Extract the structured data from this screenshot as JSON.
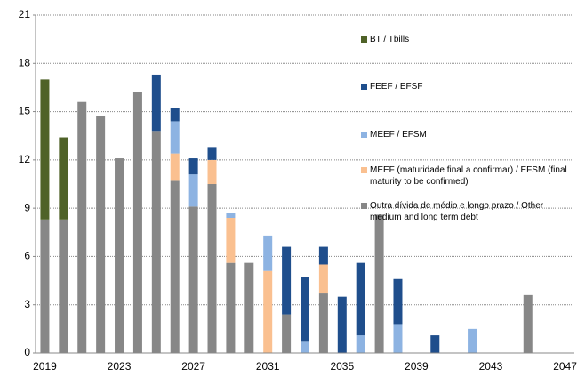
{
  "chart_data": {
    "type": "stacked_bar",
    "categories": [
      "2019",
      null,
      null,
      null,
      "2023",
      null,
      null,
      null,
      "2027",
      null,
      null,
      null,
      "2031",
      null,
      null,
      null,
      "2035",
      null,
      null,
      null,
      "2039",
      null,
      null,
      null,
      "2043",
      null,
      null,
      null,
      "2047"
    ],
    "series": [
      {
        "name": "Outra dívida de médio e longo prazo / Other medium and long term debt",
        "color": "#878787",
        "values": [
          8.3,
          8.3,
          15.6,
          14.7,
          12.1,
          16.2,
          13.8,
          10.7,
          9.1,
          10.5,
          5.6,
          5.6,
          0,
          2.4,
          0,
          3.7,
          0,
          0,
          8.6,
          0,
          0,
          0,
          0,
          0,
          0,
          0,
          3.6,
          0,
          0
        ]
      },
      {
        "name": "MEEF (maturidade final a confirmar) / EFSM (final maturity to be confirmed)",
        "color": "#fac090",
        "values": [
          0,
          0,
          0,
          0,
          0,
          0,
          0,
          1.7,
          0,
          1.5,
          2.8,
          0,
          5.1,
          0,
          0,
          1.8,
          0,
          0,
          0,
          0,
          0,
          0,
          0,
          0,
          0,
          0,
          0,
          0,
          0
        ]
      },
      {
        "name": "MEEF / EFSM",
        "color": "#8db3e2",
        "values": [
          0,
          0,
          0,
          0,
          0,
          0,
          0,
          2.0,
          2.0,
          0,
          0.3,
          0,
          2.2,
          0,
          0.7,
          0,
          0,
          1.1,
          0,
          1.8,
          0,
          0,
          0,
          1.5,
          0,
          0,
          0,
          0,
          0
        ]
      },
      {
        "name": "FEEF / EFSF",
        "color": "#1f4e8c",
        "values": [
          0,
          0,
          0,
          0,
          0,
          0,
          3.5,
          0.8,
          1.0,
          0.8,
          0,
          0,
          0,
          4.2,
          4.0,
          1.1,
          3.5,
          4.5,
          0,
          2.8,
          0,
          1.1,
          0,
          0,
          0,
          0,
          0,
          0,
          0
        ]
      },
      {
        "name": "BT / Tbills",
        "color": "#4f6228",
        "values": [
          8.7,
          5.1,
          0,
          0,
          0,
          0,
          0,
          0,
          0,
          0,
          0,
          0,
          0,
          0,
          0,
          0,
          0,
          0,
          0,
          0,
          0,
          0,
          0,
          0,
          0,
          0,
          0,
          0,
          0
        ]
      }
    ],
    "ylim": [
      0,
      21
    ],
    "yticks": [
      0,
      3,
      6,
      9,
      12,
      15,
      18,
      21
    ],
    "grid": true
  }
}
